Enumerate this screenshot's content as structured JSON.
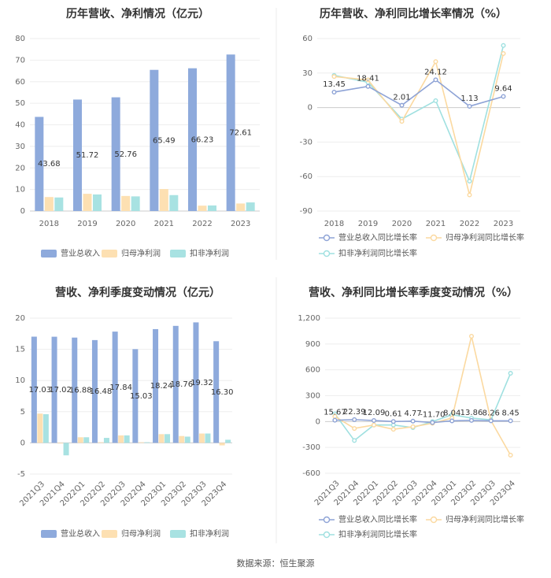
{
  "source_label": "数据来源：恒生聚源",
  "colors": {
    "revenue": "#8eaadc",
    "netprofit": "#fde0b2",
    "deducted": "#a8e2e2",
    "rev_line": "#8ea3d6",
    "np_line": "#fbd9a0",
    "ded_line": "#9fe0e0"
  },
  "chart_data": [
    {
      "id": "annual-amount",
      "type": "bar",
      "title": "历年营收、净利情况（亿元）",
      "categories": [
        "2018",
        "2019",
        "2020",
        "2021",
        "2022",
        "2023"
      ],
      "ylim": [
        0,
        80
      ],
      "yticks": [
        0,
        10,
        20,
        30,
        40,
        50,
        60,
        70,
        80
      ],
      "series": [
        {
          "name": "营业总收入",
          "values": [
            43.68,
            51.72,
            52.76,
            65.49,
            66.23,
            72.61
          ],
          "labels": [
            "43.68",
            "51.72",
            "52.76",
            "65.49",
            "66.23",
            "72.61"
          ]
        },
        {
          "name": "归母净利润",
          "values": [
            6.5,
            8.0,
            7.0,
            10.2,
            2.5,
            3.5
          ]
        },
        {
          "name": "扣非净利润",
          "values": [
            6.3,
            7.7,
            6.8,
            7.4,
            2.6,
            4.0
          ]
        }
      ]
    },
    {
      "id": "annual-growth",
      "type": "line",
      "title": "历年营收、净利同比增长率情况（%）",
      "categories": [
        "2018",
        "2019",
        "2020",
        "2021",
        "2022",
        "2023"
      ],
      "ylim": [
        -90,
        60
      ],
      "yticks": [
        -90,
        -60,
        -30,
        0,
        30,
        60
      ],
      "series": [
        {
          "name": "营业总收入同比增长率",
          "values": [
            13.45,
            18.41,
            2.01,
            24.12,
            1.13,
            9.64
          ],
          "labels": [
            "13.45",
            "18.41",
            "2.01",
            "24.12",
            "1.13",
            "9.64"
          ]
        },
        {
          "name": "归母净利润同比增长率",
          "values": [
            27,
            24,
            -12,
            40,
            -76,
            47
          ]
        },
        {
          "name": "扣非净利润同比增长率",
          "values": [
            28,
            22,
            -10,
            6,
            -64,
            54
          ]
        }
      ]
    },
    {
      "id": "quarterly-amount",
      "type": "bar",
      "title": "营收、净利季度变动情况（亿元）",
      "categories": [
        "2021Q3",
        "2021Q4",
        "2022Q1",
        "2022Q2",
        "2022Q3",
        "2022Q4",
        "2023Q1",
        "2023Q2",
        "2023Q3",
        "2023Q4"
      ],
      "ylim": [
        -5,
        20
      ],
      "yticks": [
        -5,
        0,
        5,
        10,
        15,
        20
      ],
      "series": [
        {
          "name": "营业总收入",
          "values": [
            17.03,
            17.02,
            16.88,
            16.48,
            17.84,
            15.03,
            18.24,
            18.76,
            19.32,
            16.3
          ],
          "labels": [
            "17.03",
            "17.02",
            "16.88",
            "16.48",
            "17.84",
            "15.03",
            "18.24",
            "18.76",
            "19.32",
            "16.30"
          ]
        },
        {
          "name": "归母净利润",
          "values": [
            4.7,
            -0.1,
            0.9,
            0.1,
            1.2,
            0.1,
            1.4,
            1.1,
            1.5,
            -0.4
          ]
        },
        {
          "name": "扣非净利润",
          "values": [
            4.6,
            -2.0,
            0.9,
            0.8,
            1.2,
            0.1,
            1.4,
            1.0,
            1.5,
            0.5
          ]
        }
      ]
    },
    {
      "id": "quarterly-growth",
      "type": "line",
      "title": "营收、净利同比增长率季度变动情况（%）",
      "categories": [
        "2021Q3",
        "2021Q4",
        "2022Q1",
        "2022Q2",
        "2022Q3",
        "2022Q4",
        "2023Q1",
        "2023Q2",
        "2023Q3",
        "2023Q4"
      ],
      "ylim": [
        -600,
        1200
      ],
      "yticks": [
        -600,
        -300,
        0,
        300,
        600,
        900,
        1200
      ],
      "series": [
        {
          "name": "营业总收入同比增长率",
          "values": [
            15.67,
            22.39,
            12.09,
            0.61,
            4.77,
            -11.7,
            8.04,
            13.86,
            8.26,
            8.45
          ],
          "labels": [
            "15.67",
            "22.39",
            "12.09",
            "0.61",
            "4.77",
            "-11.70",
            "8.04",
            "13.86",
            "8.26",
            "8.45"
          ]
        },
        {
          "name": "归母净利润同比增长率",
          "values": [
            60,
            -80,
            -40,
            -90,
            -60,
            -20,
            40,
            990,
            10,
            -390
          ]
        },
        {
          "name": "扣非净利润同比增长率",
          "values": [
            90,
            -220,
            -40,
            -40,
            -70,
            0,
            80,
            40,
            20,
            560
          ]
        }
      ]
    }
  ]
}
